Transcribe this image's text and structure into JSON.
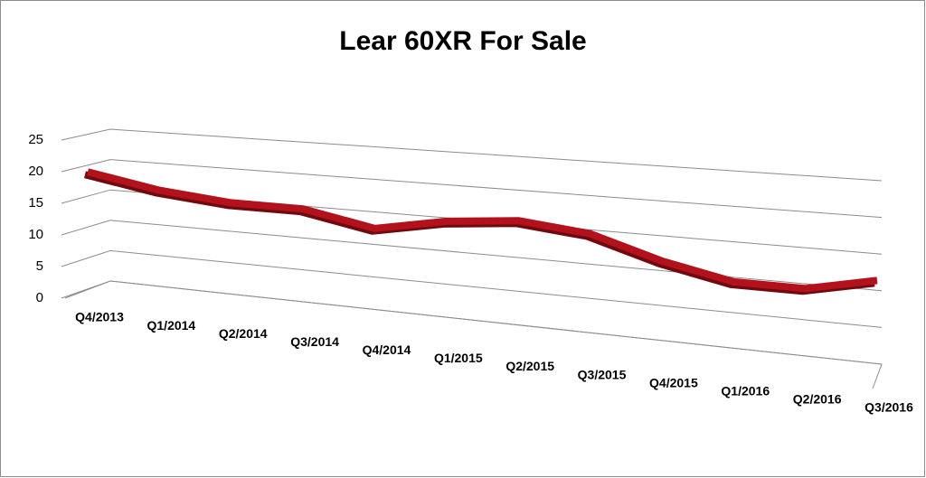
{
  "chart_data": {
    "type": "line3d",
    "title": "Lear 60XR For Sale",
    "categories": [
      "Q4/2013",
      "Q1/2014",
      "Q2/2014",
      "Q3/2014",
      "Q4/2014",
      "Q1/2015",
      "Q2/2015",
      "Q3/2015",
      "Q4/2015",
      "Q1/2016",
      "Q2/2016",
      "Q3/2016"
    ],
    "series": [
      {
        "name": "Lear 60XR",
        "color": "#b3121d",
        "values": [
          19,
          17,
          16,
          16,
          14,
          16,
          17,
          16,
          13,
          11,
          11,
          13
        ]
      }
    ],
    "ylim": [
      0,
      25
    ],
    "yticks": [
      0,
      5,
      10,
      15,
      20,
      25
    ],
    "grid": true
  }
}
